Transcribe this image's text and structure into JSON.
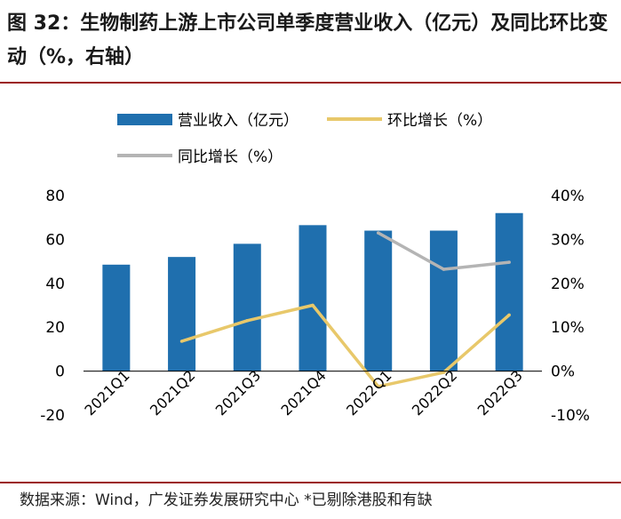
{
  "figure": {
    "title": "图 32：生物制药上游上市公司单季度营业收入（亿元）及同比环比变动（%，右轴）",
    "source": "数据来源：Wind，广发证券发展研究中心 *已剔除港股和有缺"
  },
  "colors": {
    "bar": "#1f6fae",
    "qoq": "#e8c86a",
    "yoy": "#b4b4b4",
    "rule": "#9b1b1b"
  },
  "chart_data": {
    "type": "bar",
    "categories": [
      "2021Q1",
      "2021Q2",
      "2021Q3",
      "2021Q4",
      "2022Q1",
      "2022Q2",
      "2022Q3"
    ],
    "series": [
      {
        "name": "营业收入（亿元）",
        "type": "bar",
        "axis": "left",
        "values": [
          48.5,
          52,
          58,
          66.5,
          64,
          64,
          72
        ]
      },
      {
        "name": "环比增长（%）",
        "type": "line",
        "axis": "right",
        "values": [
          null,
          6.8,
          11.5,
          15,
          -3.5,
          -0.3,
          12.8
        ]
      },
      {
        "name": "同比增长（%）",
        "type": "line",
        "axis": "right",
        "values": [
          null,
          null,
          null,
          null,
          31.5,
          23.2,
          24.8
        ]
      }
    ],
    "y_left": {
      "ylim": [
        -20,
        80
      ],
      "ticks": [
        "-20",
        "0",
        "20",
        "40",
        "60",
        "80"
      ]
    },
    "y_right": {
      "ylim": [
        -10,
        40
      ],
      "ticks": [
        "-10%",
        "0%",
        "10%",
        "20%",
        "30%",
        "40%"
      ]
    },
    "legend": "top",
    "grid": false
  }
}
